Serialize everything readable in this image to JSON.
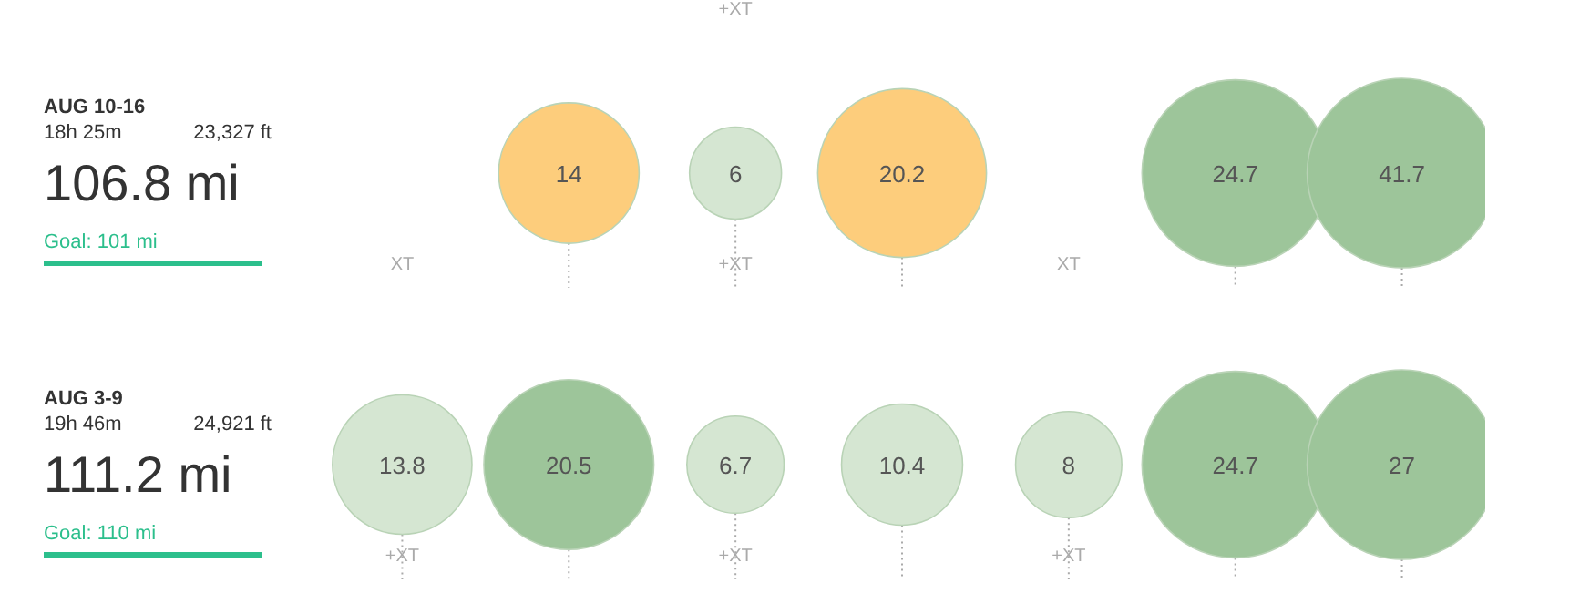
{
  "chart_data": [
    {
      "type": "other",
      "title": "AUG 10-16",
      "categories": [
        null,
        null,
        null,
        null,
        null,
        null,
        null
      ],
      "values": [
        null,
        14,
        6,
        20.2,
        null,
        24.7,
        41.7
      ],
      "colors": [
        "#d5e6d2",
        "#fdcd7c",
        "#d5e6d2",
        "#fdcd7c",
        "#d5e6d2",
        "#9dc59a",
        "#9dc59a"
      ],
      "data_labels": true,
      "annotations": [
        "18h 25m",
        "23,327 ft",
        "106.8 mi",
        "Goal: 101 mi",
        "XT",
        "+XT",
        "+XT",
        "XT"
      ]
    },
    {
      "type": "other",
      "title": "AUG 3-9",
      "categories": [
        null,
        null,
        null,
        null,
        null,
        null,
        null
      ],
      "values": [
        13.8,
        20.5,
        6.7,
        10.4,
        8,
        24.7,
        27
      ],
      "colors": [
        "#d5e6d2",
        "#9dc59a",
        "#d5e6d2",
        "#d5e6d2",
        "#d5e6d2",
        "#9dc59a",
        "#9dc59a"
      ],
      "data_labels": true,
      "annotations": [
        "19h 46m",
        "24,921 ft",
        "111.2 mi",
        "Goal: 110 mi",
        "+XT",
        "+XT",
        "+XT"
      ]
    }
  ]
}
